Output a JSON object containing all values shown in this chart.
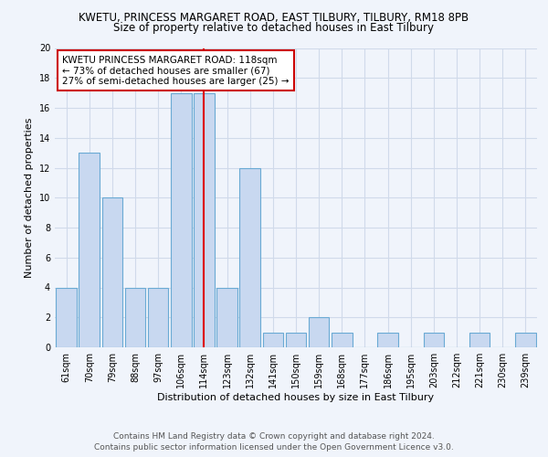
{
  "title_line1": "KWETU, PRINCESS MARGARET ROAD, EAST TILBURY, TILBURY, RM18 8PB",
  "title_line2": "Size of property relative to detached houses in East Tilbury",
  "xlabel": "Distribution of detached houses by size in East Tilbury",
  "ylabel": "Number of detached properties",
  "categories": [
    "61sqm",
    "70sqm",
    "79sqm",
    "88sqm",
    "97sqm",
    "106sqm",
    "114sqm",
    "123sqm",
    "132sqm",
    "141sqm",
    "150sqm",
    "159sqm",
    "168sqm",
    "177sqm",
    "186sqm",
    "195sqm",
    "203sqm",
    "212sqm",
    "221sqm",
    "230sqm",
    "239sqm"
  ],
  "bar_heights": [
    4,
    13,
    10,
    4,
    4,
    17,
    17,
    4,
    12,
    1,
    1,
    2,
    1,
    0,
    1,
    0,
    1,
    0,
    1,
    0,
    1
  ],
  "bar_color": "#c8d8f0",
  "bar_edge_color": "#6aaad4",
  "subject_bar_index": 6,
  "subject_line_color": "#dd0000",
  "ylim": [
    0,
    20
  ],
  "yticks": [
    0,
    2,
    4,
    6,
    8,
    10,
    12,
    14,
    16,
    18,
    20
  ],
  "annotation_text_line1": "KWETU PRINCESS MARGARET ROAD: 118sqm",
  "annotation_text_line2": "← 73% of detached houses are smaller (67)",
  "annotation_text_line3": "27% of semi-detached houses are larger (25) →",
  "annotation_box_color": "#ffffff",
  "annotation_border_color": "#cc0000",
  "footnote_line1": "Contains HM Land Registry data © Crown copyright and database right 2024.",
  "footnote_line2": "Contains public sector information licensed under the Open Government Licence v3.0.",
  "background_color": "#f0f4fb",
  "grid_color": "#d0daea",
  "title_fontsize": 8.5,
  "subtitle_fontsize": 8.5,
  "axis_label_fontsize": 8,
  "tick_fontsize": 7,
  "annotation_fontsize": 7.5,
  "footnote_fontsize": 6.5
}
